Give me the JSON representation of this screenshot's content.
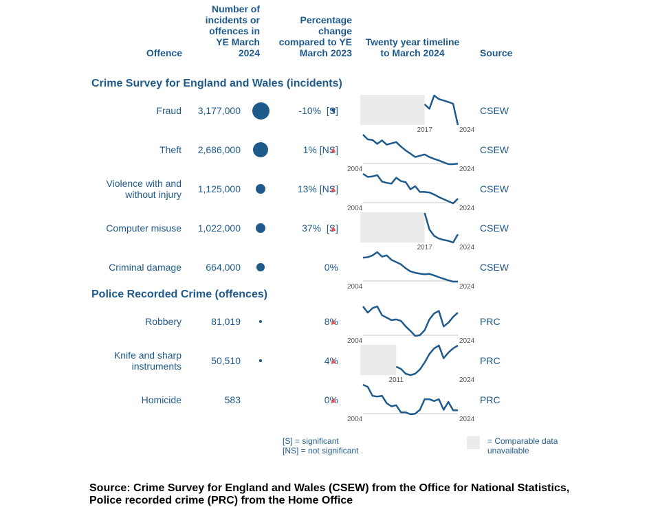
{
  "headers": {
    "offence": "Offence",
    "number": [
      "Number of",
      "incidents or",
      "offences in",
      "YE March",
      "2024"
    ],
    "change": [
      "Percentage",
      "change",
      "compared to YE",
      "March 2023"
    ],
    "timeline": [
      "Twenty year timeline",
      "to March 2024"
    ],
    "source": "Source"
  },
  "sections": [
    {
      "title": "Crime Survey for England and Wales (incidents)"
    },
    {
      "title": "Police Recorded Crime (offences)"
    }
  ],
  "chart_data": {
    "type": "table",
    "rows": [
      {
        "offence": [
          "Fraud"
        ],
        "count": "3,177,000",
        "value": 3177000,
        "change": "-10%  [S]",
        "direction": "down",
        "source": "CSEW",
        "start_label": "2017",
        "end_label": "2024",
        "unavailable_until": 2017,
        "series": [
          [
            2017,
            0.7
          ],
          [
            2018,
            0.55
          ],
          [
            2019,
            1.0
          ],
          [
            2020,
            0.88
          ],
          [
            2021,
            0.83
          ],
          [
            2022,
            0.78
          ],
          [
            2023,
            0.72
          ],
          [
            2024,
            0.0
          ]
        ]
      },
      {
        "offence": [
          "Theft"
        ],
        "count": "2,686,000",
        "value": 2686000,
        "change": "1% [NS]",
        "direction": "up",
        "source": "CSEW",
        "start_label": "2004",
        "end_label": "2024",
        "unavailable_until": null,
        "series": [
          [
            2004,
            1.0
          ],
          [
            2005,
            0.82
          ],
          [
            2006,
            0.8
          ],
          [
            2007,
            0.65
          ],
          [
            2008,
            0.78
          ],
          [
            2009,
            0.62
          ],
          [
            2010,
            0.67
          ],
          [
            2011,
            0.72
          ],
          [
            2012,
            0.55
          ],
          [
            2013,
            0.4
          ],
          [
            2014,
            0.28
          ],
          [
            2015,
            0.15
          ],
          [
            2016,
            0.2
          ],
          [
            2017,
            0.25
          ],
          [
            2018,
            0.15
          ],
          [
            2019,
            0.08
          ],
          [
            2020,
            0.02
          ],
          [
            2021,
            -0.05
          ],
          [
            2022,
            -0.12
          ],
          [
            2023,
            -0.12
          ],
          [
            2024,
            -0.1
          ]
        ]
      },
      {
        "offence": [
          "Violence with and",
          "without injury"
        ],
        "count": "1,125,000",
        "value": 1125000,
        "change": "13% [NS]",
        "direction": "up",
        "source": "CSEW",
        "start_label": "2004",
        "end_label": "2024",
        "unavailable_until": null,
        "series": [
          [
            2004,
            1.0
          ],
          [
            2005,
            0.88
          ],
          [
            2006,
            0.9
          ],
          [
            2007,
            0.95
          ],
          [
            2008,
            0.7
          ],
          [
            2009,
            0.65
          ],
          [
            2010,
            0.62
          ],
          [
            2011,
            0.85
          ],
          [
            2012,
            0.72
          ],
          [
            2013,
            0.68
          ],
          [
            2014,
            0.4
          ],
          [
            2015,
            0.52
          ],
          [
            2016,
            0.3
          ],
          [
            2017,
            0.3
          ],
          [
            2018,
            0.28
          ],
          [
            2019,
            0.2
          ],
          [
            2020,
            0.1
          ],
          [
            2021,
            0.02
          ],
          [
            2022,
            -0.06
          ],
          [
            2023,
            -0.14
          ],
          [
            2024,
            0.04
          ]
        ]
      },
      {
        "offence": [
          "Computer misuse"
        ],
        "count": "1,022,000",
        "value": 1022000,
        "change": "37%  [S]",
        "direction": "up",
        "source": "CSEW",
        "start_label": "2017",
        "end_label": "2024",
        "unavailable_until": 2017,
        "series": [
          [
            2017,
            1.0
          ],
          [
            2018,
            0.5
          ],
          [
            2019,
            0.3
          ],
          [
            2020,
            0.22
          ],
          [
            2021,
            0.18
          ],
          [
            2022,
            0.15
          ],
          [
            2023,
            0.1
          ],
          [
            2024,
            0.35
          ]
        ]
      },
      {
        "offence": [
          "Criminal damage"
        ],
        "count": "664,000",
        "value": 664000,
        "change": "0%",
        "direction": "none",
        "source": "CSEW",
        "start_label": "2004",
        "end_label": "2024",
        "unavailable_until": null,
        "series": [
          [
            2004,
            1.0
          ],
          [
            2005,
            1.02
          ],
          [
            2006,
            1.1
          ],
          [
            2007,
            1.25
          ],
          [
            2008,
            1.05
          ],
          [
            2009,
            1.1
          ],
          [
            2010,
            0.9
          ],
          [
            2011,
            0.8
          ],
          [
            2012,
            0.7
          ],
          [
            2013,
            0.52
          ],
          [
            2014,
            0.38
          ],
          [
            2015,
            0.32
          ],
          [
            2016,
            0.28
          ],
          [
            2017,
            0.25
          ],
          [
            2018,
            0.27
          ],
          [
            2019,
            0.2
          ],
          [
            2020,
            0.12
          ],
          [
            2021,
            0.05
          ],
          [
            2022,
            -0.02
          ],
          [
            2023,
            -0.08
          ],
          [
            2024,
            -0.08
          ]
        ]
      },
      {
        "offence": [
          "Robbery"
        ],
        "count": "81,019",
        "value": 81019,
        "change": "8%",
        "direction": "up",
        "source": "PRC",
        "start_label": "2004",
        "end_label": "2024",
        "unavailable_until": null,
        "series": [
          [
            2004,
            1.0
          ],
          [
            2005,
            0.75
          ],
          [
            2006,
            0.93
          ],
          [
            2007,
            1.0
          ],
          [
            2008,
            0.65
          ],
          [
            2009,
            0.55
          ],
          [
            2010,
            0.45
          ],
          [
            2011,
            0.48
          ],
          [
            2012,
            0.42
          ],
          [
            2013,
            0.2
          ],
          [
            2014,
            0.02
          ],
          [
            2015,
            -0.18
          ],
          [
            2016,
            -0.15
          ],
          [
            2017,
            0.05
          ],
          [
            2018,
            0.48
          ],
          [
            2019,
            0.72
          ],
          [
            2020,
            0.82
          ],
          [
            2021,
            0.2
          ],
          [
            2022,
            0.35
          ],
          [
            2023,
            0.58
          ],
          [
            2024,
            0.75
          ]
        ]
      },
      {
        "offence": [
          "Knife and sharp",
          "instruments"
        ],
        "count": "50,510",
        "value": 50510,
        "change": "4%",
        "direction": "up",
        "source": "PRC",
        "start_label": "2011",
        "end_label": "2024",
        "unavailable_until": 2011,
        "series": [
          [
            2011,
            0.3
          ],
          [
            2012,
            0.22
          ],
          [
            2013,
            0.05
          ],
          [
            2014,
            0.0
          ],
          [
            2015,
            0.05
          ],
          [
            2016,
            0.2
          ],
          [
            2017,
            0.45
          ],
          [
            2018,
            0.75
          ],
          [
            2019,
            0.95
          ],
          [
            2020,
            1.05
          ],
          [
            2021,
            0.6
          ],
          [
            2022,
            0.8
          ],
          [
            2023,
            0.95
          ],
          [
            2024,
            1.05
          ]
        ]
      },
      {
        "offence": [
          "Homicide"
        ],
        "count": "583",
        "value": 583,
        "change": "0%",
        "direction": "up",
        "source": "PRC",
        "start_label": "2004",
        "end_label": "2024",
        "unavailable_until": null,
        "series": [
          [
            2004,
            1.0
          ],
          [
            2005,
            0.92
          ],
          [
            2006,
            0.58
          ],
          [
            2007,
            0.55
          ],
          [
            2008,
            0.58
          ],
          [
            2009,
            0.3
          ],
          [
            2010,
            0.18
          ],
          [
            2011,
            0.22
          ],
          [
            2012,
            -0.05
          ],
          [
            2013,
            -0.05
          ],
          [
            2014,
            -0.12
          ],
          [
            2015,
            -0.1
          ],
          [
            2016,
            0.05
          ],
          [
            2017,
            0.45
          ],
          [
            2018,
            0.45
          ],
          [
            2019,
            0.38
          ],
          [
            2020,
            0.45
          ],
          [
            2021,
            0.05
          ],
          [
            2022,
            0.35
          ],
          [
            2023,
            0.03
          ],
          [
            2024,
            0.03
          ]
        ]
      }
    ]
  },
  "legend": {
    "sig": "[S] = significant",
    "nonsig": "[NS] = not significant",
    "unavailable": [
      "= Comparable data",
      "unavailable"
    ]
  },
  "footer": [
    "Source: Crime Survey for England and Wales (CSEW) from the Office for National Statistics,",
    "Police recorded crime (PRC) from the Home Office"
  ],
  "colors": {
    "text": "#1f5a8c",
    "line": "#1f5a8c",
    "up_arrow": "#e05a5a",
    "unavailable": "#ebebeb",
    "axis": "#d9d9d9"
  }
}
